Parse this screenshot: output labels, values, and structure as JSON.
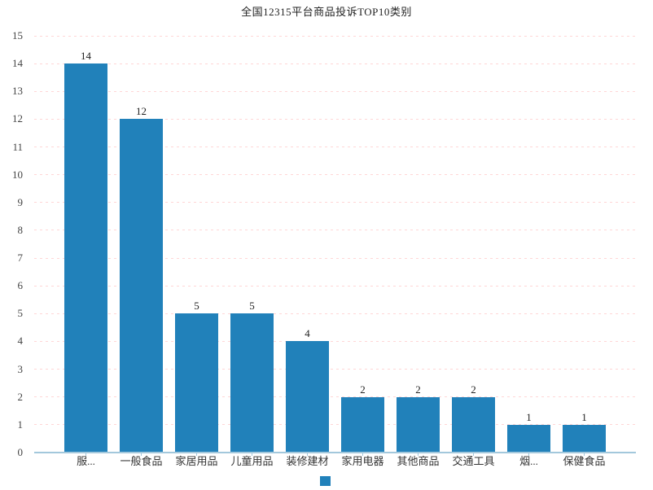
{
  "colors": {
    "bar": "#2181ba",
    "axis_line": "#a3c8dc",
    "grid_line": "#ffd6d6",
    "title_text": "#222222",
    "axis_text": "#444444",
    "label_text": "#333333"
  },
  "legend": {
    "marker": "bar-series-marker"
  },
  "chart_data": {
    "type": "bar",
    "title": "全国12315平台商品投诉TOP10类别",
    "categories": [
      "服...",
      "一般食品",
      "家居用品",
      "儿童用品",
      "装修建材",
      "家用电器",
      "其他商品",
      "交通工具",
      "烟...",
      "保健食品"
    ],
    "values": [
      14,
      12,
      5,
      5,
      4,
      2,
      2,
      2,
      1,
      1
    ],
    "xlabel": "",
    "ylabel": "",
    "ylim": [
      0,
      15
    ],
    "yticks": [
      0,
      1,
      2,
      3,
      4,
      5,
      6,
      7,
      8,
      9,
      10,
      11,
      12,
      13,
      14,
      15
    ],
    "grid": "horizontal-dashed",
    "data_labels": true,
    "legend_position": "bottom-center"
  }
}
